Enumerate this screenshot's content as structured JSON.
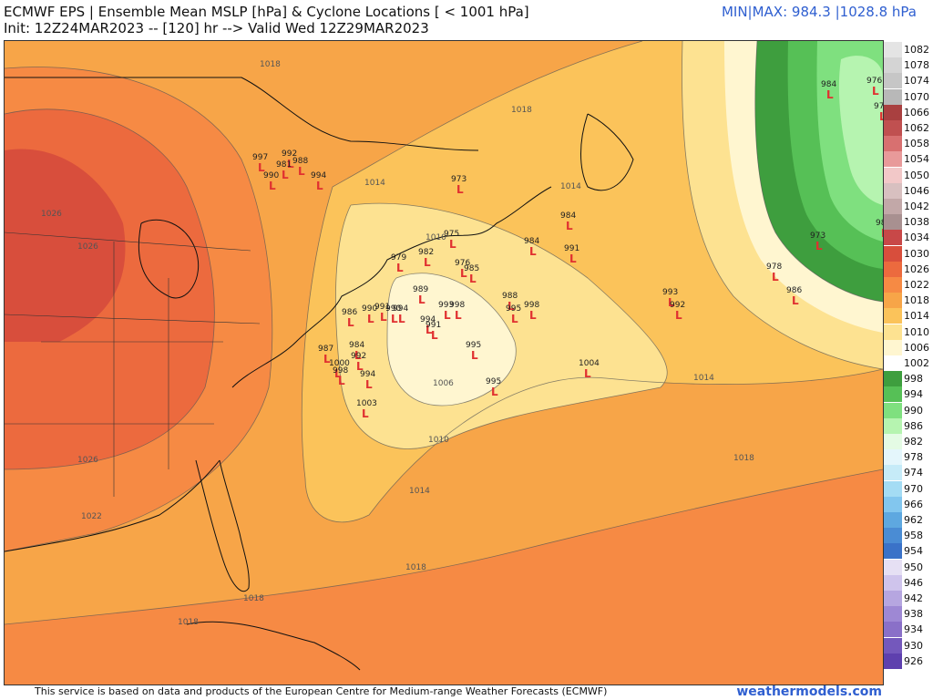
{
  "header": {
    "title": "ECMWF EPS | Ensemble Mean MSLP [hPa] & Cyclone Locations [ < 1001 hPa]",
    "subtitle": "Init: 12Z24MAR2023 -- [120] hr --> Valid Wed 12Z29MAR2023",
    "minmax": "MIN|MAX: 984.3 |1028.8 hPa"
  },
  "footer": {
    "credit": "This service is based on data and products of the European Centre for Medium-range Weather Forecasts (ECMWF)",
    "brand": "weathermodels.com"
  },
  "legend": [
    {
      "value": "1082",
      "color": "#e4e4e4"
    },
    {
      "value": "1078",
      "color": "#d4d4d4"
    },
    {
      "value": "1074",
      "color": "#c6c6c6"
    },
    {
      "value": "1070",
      "color": "#b8b8b8"
    },
    {
      "value": "1066",
      "color": "#a94040"
    },
    {
      "value": "1062",
      "color": "#c05050"
    },
    {
      "value": "1058",
      "color": "#d87070"
    },
    {
      "value": "1054",
      "color": "#e89a9a"
    },
    {
      "value": "1050",
      "color": "#f2c8c8"
    },
    {
      "value": "1046",
      "color": "#d8c0c0"
    },
    {
      "value": "1042",
      "color": "#c2a8a8"
    },
    {
      "value": "1038",
      "color": "#a89090"
    },
    {
      "value": "1034",
      "color": "#c84848"
    },
    {
      "value": "1030",
      "color": "#d84e3c"
    },
    {
      "value": "1026",
      "color": "#ec6a3e"
    },
    {
      "value": "1022",
      "color": "#f68a44"
    },
    {
      "value": "1018",
      "color": "#f7a548"
    },
    {
      "value": "1014",
      "color": "#fbc35a"
    },
    {
      "value": "1010",
      "color": "#fde291"
    },
    {
      "value": "1006",
      "color": "#fff6d0"
    },
    {
      "value": "1002",
      "color": "#ffffff"
    },
    {
      "value": "998",
      "color": "#3e9e3e"
    },
    {
      "value": "994",
      "color": "#56c056"
    },
    {
      "value": "990",
      "color": "#7fe07f"
    },
    {
      "value": "986",
      "color": "#b6f4b0"
    },
    {
      "value": "982",
      "color": "#e4fbe4"
    },
    {
      "value": "978",
      "color": "#e4f6fc"
    },
    {
      "value": "974",
      "color": "#c6ebf8"
    },
    {
      "value": "970",
      "color": "#a4dcf4"
    },
    {
      "value": "966",
      "color": "#82c6ee"
    },
    {
      "value": "962",
      "color": "#5ea8e0"
    },
    {
      "value": "958",
      "color": "#4a8cd4"
    },
    {
      "value": "954",
      "color": "#3a72c8"
    },
    {
      "value": "950",
      "color": "#e6e0f4"
    },
    {
      "value": "946",
      "color": "#cfc4ec"
    },
    {
      "value": "942",
      "color": "#b6a6e0"
    },
    {
      "value": "938",
      "color": "#9e88d4"
    },
    {
      "value": "934",
      "color": "#8a70c8"
    },
    {
      "value": "930",
      "color": "#7458bc"
    },
    {
      "value": "926",
      "color": "#5e40ae"
    }
  ],
  "isobar_labels": [
    "1018",
    "1018",
    "1026",
    "1026",
    "1026",
    "1022",
    "1014",
    "1014",
    "1014",
    "1010",
    "1006",
    "1010",
    "1014",
    "1018",
    "1018",
    "1018",
    "1018"
  ],
  "cyclones": [
    {
      "p": "997"
    },
    {
      "p": "992"
    },
    {
      "p": "988"
    },
    {
      "p": "981"
    },
    {
      "p": "990"
    },
    {
      "p": "994"
    },
    {
      "p": "973"
    },
    {
      "p": "984"
    },
    {
      "p": "975"
    },
    {
      "p": "982"
    },
    {
      "p": "976"
    },
    {
      "p": "985"
    },
    {
      "p": "984"
    },
    {
      "p": "991"
    },
    {
      "p": "979"
    },
    {
      "p": "989"
    },
    {
      "p": "993"
    },
    {
      "p": "998"
    },
    {
      "p": "988"
    },
    {
      "p": "995"
    },
    {
      "p": "998"
    },
    {
      "p": "994"
    },
    {
      "p": "991"
    },
    {
      "p": "995"
    },
    {
      "p": "987"
    },
    {
      "p": "984"
    },
    {
      "p": "992"
    },
    {
      "p": "1000"
    },
    {
      "p": "998"
    },
    {
      "p": "994"
    },
    {
      "p": "1003"
    },
    {
      "p": "995"
    },
    {
      "p": "1004"
    },
    {
      "p": "993"
    },
    {
      "p": "992"
    },
    {
      "p": "978"
    },
    {
      "p": "986"
    },
    {
      "p": "973"
    },
    {
      "p": "984"
    },
    {
      "p": "976"
    },
    {
      "p": "977"
    },
    {
      "p": "984"
    },
    {
      "p": "990"
    },
    {
      "p": "986"
    },
    {
      "p": "990"
    },
    {
      "p": "991"
    },
    {
      "p": "994"
    }
  ]
}
